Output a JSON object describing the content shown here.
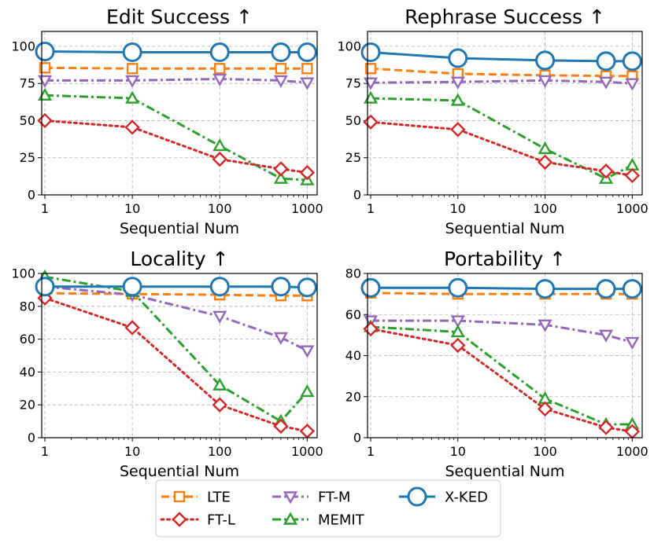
{
  "chart_data": [
    {
      "type": "line",
      "title": "Edit Success ↑",
      "xlabel": "Sequential Num",
      "x": [
        1,
        10,
        100,
        500,
        1000
      ],
      "x_scale": "log",
      "x_ticks": [
        "1",
        "10",
        "100",
        "1000"
      ],
      "ylim": [
        0,
        110
      ],
      "y_ticks": [
        0,
        25,
        50,
        75,
        100
      ],
      "grid": true,
      "series": [
        {
          "name": "LTE",
          "values": [
            85.5,
            85,
            85,
            85,
            85
          ]
        },
        {
          "name": "FT-M",
          "values": [
            77,
            77,
            78,
            77,
            75.5
          ]
        },
        {
          "name": "MEMIT",
          "values": [
            67,
            65,
            33,
            11,
            10
          ]
        },
        {
          "name": "FT-L",
          "values": [
            50,
            45.5,
            24,
            17.5,
            15
          ]
        },
        {
          "name": "X-KED",
          "values": [
            96.5,
            96,
            96,
            96,
            96
          ]
        }
      ]
    },
    {
      "type": "line",
      "title": "Rephrase Success ↑",
      "xlabel": "Sequential Num",
      "x": [
        1,
        10,
        100,
        500,
        1000
      ],
      "x_scale": "log",
      "x_ticks": [
        "1",
        "10",
        "100",
        "1000"
      ],
      "ylim": [
        0,
        110
      ],
      "y_ticks": [
        0,
        25,
        50,
        75,
        100
      ],
      "grid": true,
      "series": [
        {
          "name": "LTE",
          "values": [
            85,
            81.5,
            80.5,
            80,
            80
          ]
        },
        {
          "name": "FT-M",
          "values": [
            75.5,
            76,
            77,
            76,
            75
          ]
        },
        {
          "name": "MEMIT",
          "values": [
            65,
            63.5,
            31,
            11,
            20
          ]
        },
        {
          "name": "FT-L",
          "values": [
            49,
            44,
            22,
            16,
            13
          ]
        },
        {
          "name": "X-KED",
          "values": [
            96,
            92,
            90.5,
            90,
            90
          ]
        }
      ]
    },
    {
      "type": "line",
      "title": "Locality ↑",
      "xlabel": "Sequential Num",
      "x": [
        1,
        10,
        100,
        500,
        1000
      ],
      "x_scale": "log",
      "x_ticks": [
        "1",
        "10",
        "100",
        "1000"
      ],
      "ylim": [
        0,
        100
      ],
      "y_ticks": [
        0,
        20,
        40,
        60,
        80,
        100
      ],
      "grid": true,
      "series": [
        {
          "name": "LTE",
          "values": [
            88,
            87.5,
            87,
            86.5,
            86.5
          ]
        },
        {
          "name": "FT-M",
          "values": [
            92,
            87,
            74,
            61,
            53
          ]
        },
        {
          "name": "MEMIT",
          "values": [
            98,
            89,
            32,
            10,
            28
          ]
        },
        {
          "name": "FT-L",
          "values": [
            85,
            67,
            20,
            7,
            4
          ]
        },
        {
          "name": "X-KED",
          "values": [
            92,
            92,
            92,
            92,
            91.5
          ]
        }
      ]
    },
    {
      "type": "line",
      "title": "Portability ↑",
      "xlabel": "Sequential Num",
      "x": [
        1,
        10,
        100,
        500,
        1000
      ],
      "x_scale": "log",
      "x_ticks": [
        "1",
        "10",
        "100",
        "1000"
      ],
      "ylim": [
        0,
        80
      ],
      "y_ticks": [
        0,
        20,
        40,
        60,
        80
      ],
      "grid": true,
      "series": [
        {
          "name": "LTE",
          "values": [
            70.5,
            70,
            70,
            70,
            70
          ]
        },
        {
          "name": "FT-M",
          "values": [
            57,
            57,
            55,
            50,
            46.5
          ]
        },
        {
          "name": "MEMIT",
          "values": [
            54,
            51.5,
            19,
            6.5,
            6.5
          ]
        },
        {
          "name": "FT-L",
          "values": [
            53,
            45,
            14,
            5,
            3
          ]
        },
        {
          "name": "X-KED",
          "values": [
            73,
            73,
            72.5,
            72.5,
            72.5
          ]
        }
      ]
    }
  ],
  "legend": {
    "placement": "bottom",
    "items": [
      "LTE",
      "FT-L",
      "FT-M",
      "MEMIT",
      "X-KED"
    ]
  },
  "series_styles": {
    "LTE": {
      "color": "#ff7f0e",
      "marker": "square-icon",
      "dash": "dashed"
    },
    "FT-L": {
      "color": "#d62728",
      "marker": "diamond-icon",
      "dash": "dotted"
    },
    "FT-M": {
      "color": "#9467bd",
      "marker": "triangle-down-icon",
      "dash": "dashdot"
    },
    "MEMIT": {
      "color": "#2ca02c",
      "marker": "triangle-up-icon",
      "dash": "dashdot"
    },
    "X-KED": {
      "color": "#1f77b4",
      "marker": "circle-icon",
      "dash": "solid"
    }
  }
}
